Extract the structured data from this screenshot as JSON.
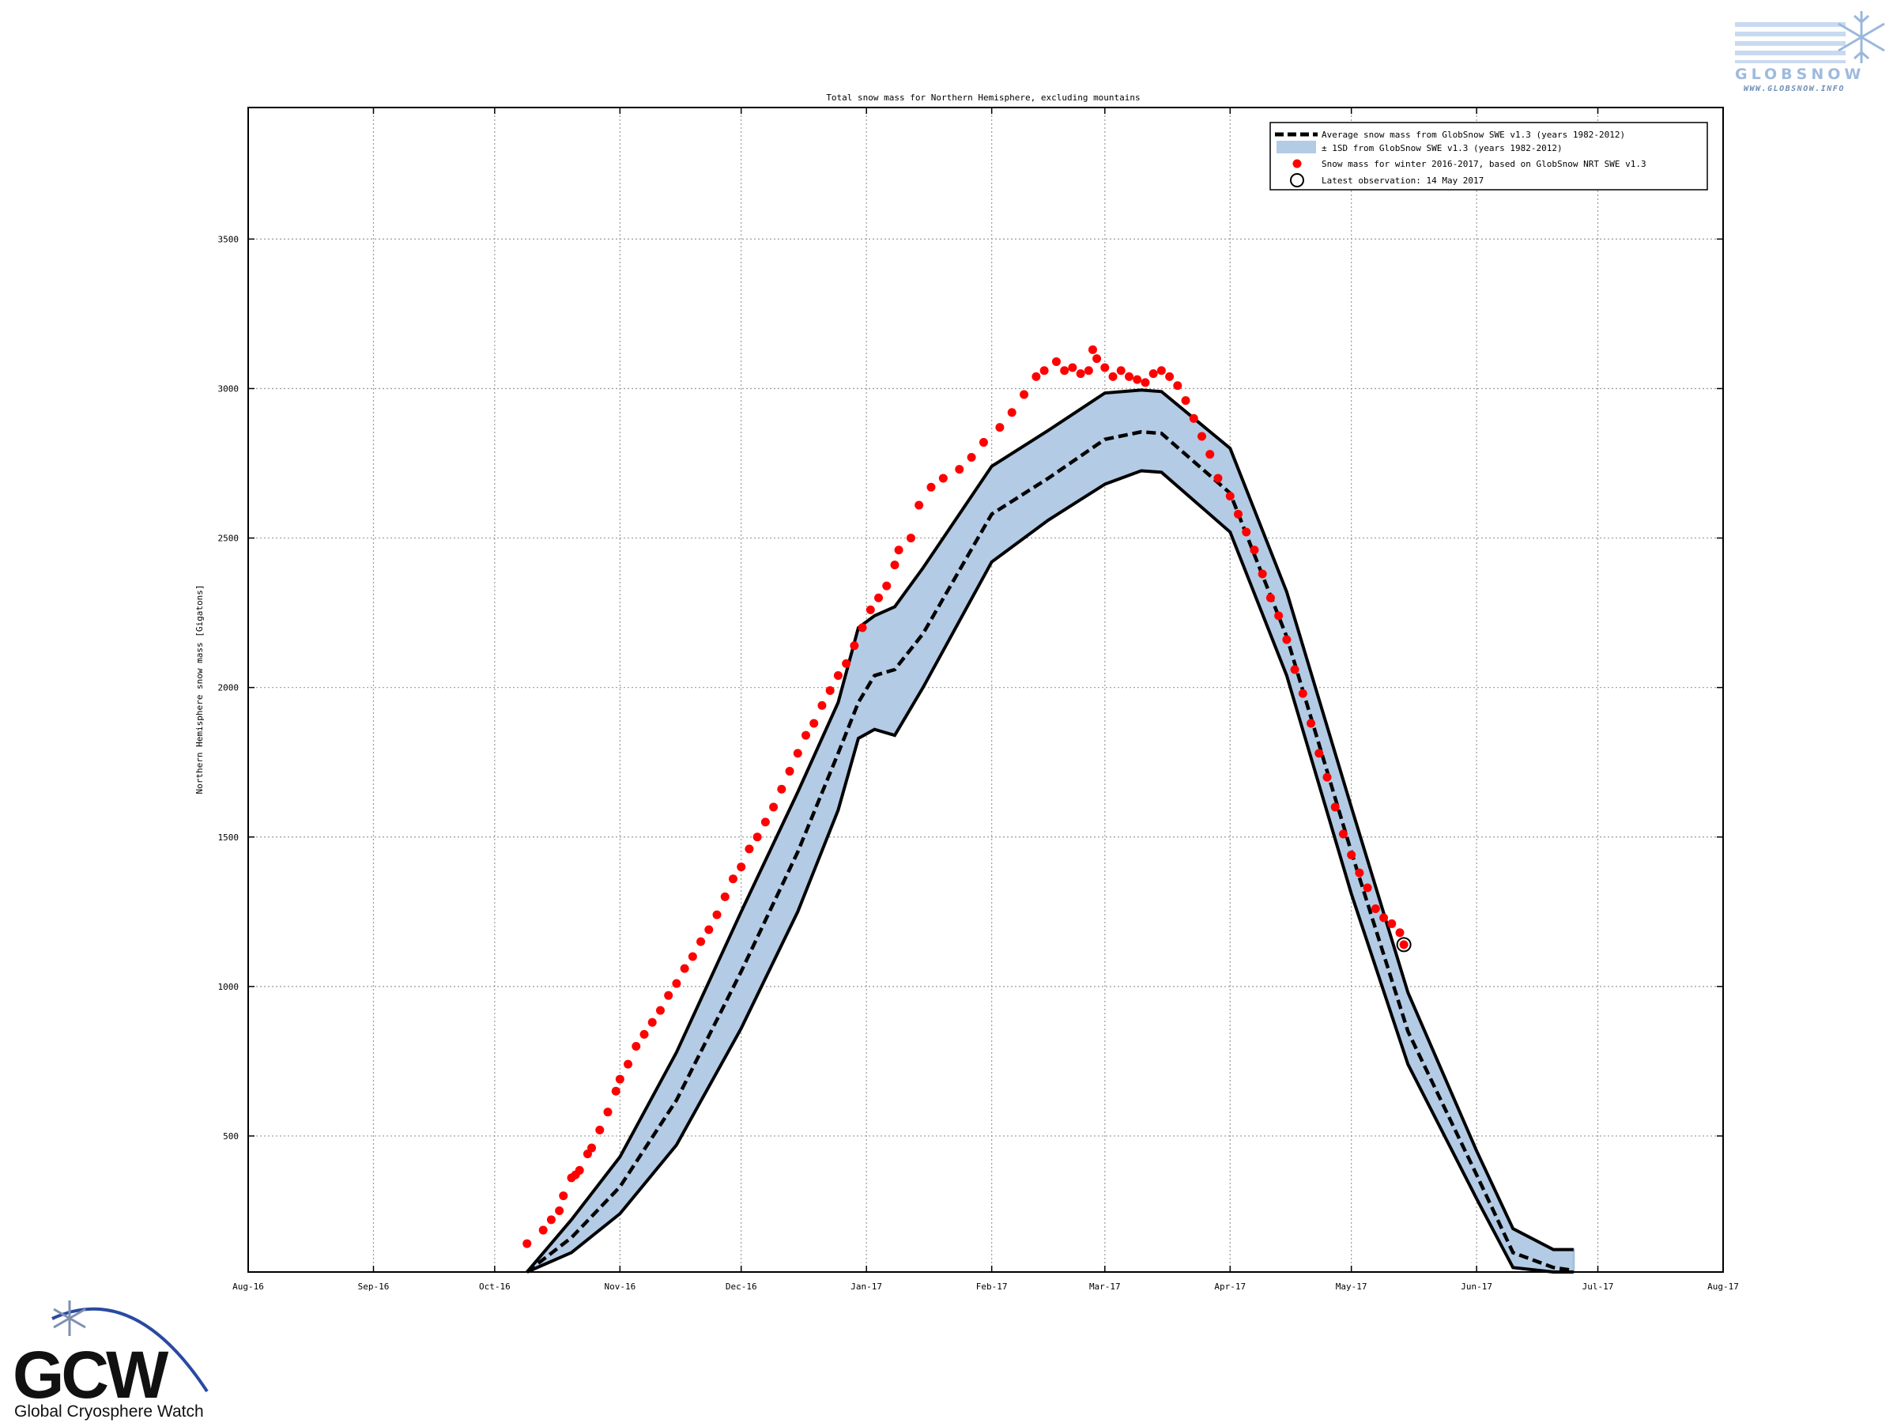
{
  "globsnow": {
    "logo_text": "GLOBSNOW",
    "url": "WWW.GLOBSNOW.INFO"
  },
  "gcw": {
    "logo_text": "GCW",
    "subtitle": "Global Cryosphere Watch"
  },
  "chart_data": {
    "type": "area",
    "title": "Total snow mass for Northern Hemisphere, excluding mountains",
    "xlabel": "",
    "ylabel": "Northern Hemisphere snow mass [Gigatons]",
    "x_domain": [
      "2016-08-01",
      "2017-08-01"
    ],
    "ylim": [
      45,
      3940
    ],
    "x_ticks": [
      {
        "date": "2016-08-01",
        "label": "Aug-16"
      },
      {
        "date": "2016-09-01",
        "label": "Sep-16"
      },
      {
        "date": "2016-10-01",
        "label": "Oct-16"
      },
      {
        "date": "2016-11-01",
        "label": "Nov-16"
      },
      {
        "date": "2016-12-01",
        "label": "Dec-16"
      },
      {
        "date": "2017-01-01",
        "label": "Jan-17"
      },
      {
        "date": "2017-02-01",
        "label": "Feb-17"
      },
      {
        "date": "2017-03-01",
        "label": "Mar-17"
      },
      {
        "date": "2017-04-01",
        "label": "Apr-17"
      },
      {
        "date": "2017-05-01",
        "label": "May-17"
      },
      {
        "date": "2017-06-01",
        "label": "Jun-17"
      },
      {
        "date": "2017-07-01",
        "label": "Jul-17"
      },
      {
        "date": "2017-08-01",
        "label": "Aug-17"
      }
    ],
    "y_ticks": [
      500,
      1000,
      1500,
      2000,
      2500,
      3000,
      3500
    ],
    "grid": true,
    "legend_position": "top-right",
    "colors": {
      "band_fill": "#b3cbe5",
      "band_edge": "#a5bfdd",
      "average": "#000000",
      "observed": "#ff0000"
    },
    "legend": [
      "Average snow mass from GlobSnow SWE v1.3 (years 1982-2012)",
      "± 1SD from GlobSnow SWE v1.3 (years 1982-2012)",
      "Snow mass for winter 2016-2017, based on GlobSnow NRT SWE v1.3",
      "Latest observation: 14 May 2017"
    ],
    "series": [
      {
        "name": "Average snow mass from GlobSnow SWE v1.3 (years 1982-2012)",
        "kind": "dashed-line",
        "x": [
          "2016-10-09",
          "2016-10-20",
          "2016-11-01",
          "2016-11-15",
          "2016-12-01",
          "2016-12-15",
          "2016-12-25",
          "2016-12-30",
          "2017-01-03",
          "2017-01-08",
          "2017-01-15",
          "2017-02-01",
          "2017-02-15",
          "2017-03-01",
          "2017-03-10",
          "2017-03-15",
          "2017-04-01",
          "2017-04-15",
          "2017-05-01",
          "2017-05-15",
          "2017-06-01",
          "2017-06-10",
          "2017-06-20",
          "2017-06-25"
        ],
        "values": [
          45,
          160,
          330,
          620,
          1050,
          1450,
          1780,
          1950,
          2040,
          2060,
          2180,
          2580,
          2700,
          2830,
          2855,
          2850,
          2650,
          2170,
          1450,
          850,
          370,
          110,
          60,
          50
        ]
      },
      {
        "name": "± 1SD from GlobSnow SWE v1.3 (years 1982-2012)",
        "kind": "band",
        "x": [
          "2016-10-09",
          "2016-10-20",
          "2016-11-01",
          "2016-11-15",
          "2016-12-01",
          "2016-12-15",
          "2016-12-25",
          "2016-12-30",
          "2017-01-03",
          "2017-01-08",
          "2017-01-15",
          "2017-02-01",
          "2017-02-15",
          "2017-03-01",
          "2017-03-10",
          "2017-03-15",
          "2017-04-01",
          "2017-04-15",
          "2017-05-01",
          "2017-05-15",
          "2017-06-01",
          "2017-06-10",
          "2017-06-20",
          "2017-06-25"
        ],
        "upper": [
          45,
          220,
          430,
          780,
          1250,
          1650,
          1950,
          2200,
          2240,
          2270,
          2400,
          2740,
          2860,
          2985,
          2995,
          2990,
          2800,
          2320,
          1600,
          980,
          450,
          190,
          120,
          120
        ],
        "lower": [
          45,
          110,
          240,
          470,
          860,
          1250,
          1590,
          1830,
          1860,
          1840,
          2000,
          2420,
          2560,
          2680,
          2725,
          2720,
          2520,
          2040,
          1310,
          740,
          290,
          60,
          45,
          45
        ]
      },
      {
        "name": "Snow mass for winter 2016-2017, based on GlobSnow NRT SWE v1.3",
        "kind": "scatter",
        "x": [
          "2016-10-09",
          "2016-10-13",
          "2016-10-15",
          "2016-10-17",
          "2016-10-18",
          "2016-10-20",
          "2016-10-21",
          "2016-10-22",
          "2016-10-24",
          "2016-10-25",
          "2016-10-27",
          "2016-10-29",
          "2016-10-31",
          "2016-11-01",
          "2016-11-03",
          "2016-11-05",
          "2016-11-07",
          "2016-11-09",
          "2016-11-11",
          "2016-11-13",
          "2016-11-15",
          "2016-11-17",
          "2016-11-19",
          "2016-11-21",
          "2016-11-23",
          "2016-11-25",
          "2016-11-27",
          "2016-11-29",
          "2016-12-01",
          "2016-12-03",
          "2016-12-05",
          "2016-12-07",
          "2016-12-09",
          "2016-12-11",
          "2016-12-13",
          "2016-12-15",
          "2016-12-17",
          "2016-12-19",
          "2016-12-21",
          "2016-12-23",
          "2016-12-25",
          "2016-12-27",
          "2016-12-29",
          "2016-12-31",
          "2017-01-02",
          "2017-01-04",
          "2017-01-06",
          "2017-01-08",
          "2017-01-09",
          "2017-01-12",
          "2017-01-14",
          "2017-01-17",
          "2017-01-20",
          "2017-01-24",
          "2017-01-27",
          "2017-01-30",
          "2017-02-03",
          "2017-02-06",
          "2017-02-09",
          "2017-02-12",
          "2017-02-14",
          "2017-02-17",
          "2017-02-19",
          "2017-02-21",
          "2017-02-23",
          "2017-02-25",
          "2017-02-26",
          "2017-02-27",
          "2017-03-01",
          "2017-03-03",
          "2017-03-05",
          "2017-03-07",
          "2017-03-09",
          "2017-03-11",
          "2017-03-13",
          "2017-03-15",
          "2017-03-17",
          "2017-03-19",
          "2017-03-21",
          "2017-03-23",
          "2017-03-25",
          "2017-03-27",
          "2017-03-29",
          "2017-04-01",
          "2017-04-03",
          "2017-04-05",
          "2017-04-07",
          "2017-04-09",
          "2017-04-11",
          "2017-04-13",
          "2017-04-15",
          "2017-04-17",
          "2017-04-19",
          "2017-04-21",
          "2017-04-23",
          "2017-04-25",
          "2017-04-27",
          "2017-04-29",
          "2017-05-01",
          "2017-05-03",
          "2017-05-05",
          "2017-05-07",
          "2017-05-09",
          "2017-05-11",
          "2017-05-13",
          "2017-05-14"
        ],
        "values": [
          140,
          185,
          220,
          250,
          300,
          360,
          370,
          385,
          440,
          460,
          520,
          580,
          650,
          690,
          740,
          800,
          840,
          880,
          920,
          970,
          1010,
          1060,
          1100,
          1150,
          1190,
          1240,
          1300,
          1360,
          1400,
          1460,
          1500,
          1550,
          1600,
          1660,
          1720,
          1780,
          1840,
          1880,
          1940,
          1990,
          2040,
          2080,
          2140,
          2200,
          2260,
          2300,
          2340,
          2410,
          2460,
          2500,
          2610,
          2670,
          2700,
          2730,
          2770,
          2820,
          2870,
          2920,
          2980,
          3040,
          3060,
          3090,
          3060,
          3070,
          3050,
          3060,
          3130,
          3100,
          3070,
          3040,
          3060,
          3040,
          3030,
          3020,
          3050,
          3060,
          3040,
          3010,
          2960,
          2900,
          2840,
          2780,
          2700,
          2640,
          2580,
          2520,
          2460,
          2380,
          2300,
          2240,
          2160,
          2060,
          1980,
          1880,
          1780,
          1700,
          1600,
          1510,
          1440,
          1380,
          1330,
          1260,
          1230,
          1210,
          1180,
          1140
        ]
      },
      {
        "name": "Latest observation: 14 May 2017",
        "kind": "marker",
        "x": [
          "2017-05-14"
        ],
        "values": [
          1140
        ]
      }
    ],
    "y_tick_labels": [
      "500",
      "1000",
      "1500",
      "2000",
      "2500",
      "3000",
      "3500"
    ]
  }
}
